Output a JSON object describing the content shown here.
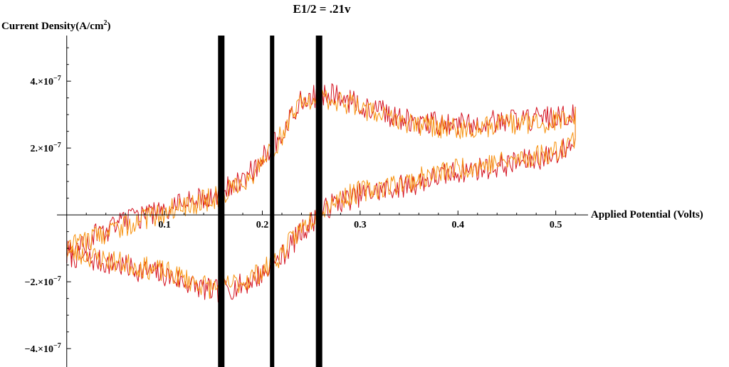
{
  "chart_data": {
    "type": "line",
    "title": "E1/2 = .21v",
    "xlabel": "Applied Potential (Volts)",
    "ylabel": {
      "text": "Current Density(A/cm",
      "sup": "2",
      "suffix": ")"
    },
    "xlim": [
      -0.01,
      0.525
    ],
    "ylim": [
      -4.55e-07,
      5.45e-07
    ],
    "x_ticks": [
      {
        "value": 0.1,
        "label": "0.1"
      },
      {
        "value": 0.2,
        "label": "0.2"
      },
      {
        "value": 0.3,
        "label": "0.3"
      },
      {
        "value": 0.4,
        "label": "0.4"
      },
      {
        "value": 0.5,
        "label": "0.5"
      }
    ],
    "y_ticks": [
      {
        "value": 4e-07,
        "mant": "4.",
        "exp": "−7"
      },
      {
        "value": 2e-07,
        "mant": "2.",
        "exp": "−7"
      },
      {
        "value": -2e-07,
        "mant": "−2.",
        "exp": "−7"
      },
      {
        "value": -4e-07,
        "mant": "−4.",
        "exp": "−7"
      }
    ],
    "tick_mult": "×10",
    "vertical_lines": [
      {
        "x": 0.158,
        "width": "thick"
      },
      {
        "x": 0.21,
        "width": "thin"
      },
      {
        "x": 0.258,
        "width": "thick"
      }
    ],
    "series": [
      {
        "color": "#d4111f",
        "forward": [
          [
            0.0,
            -1.2e-07
          ],
          [
            0.05,
            -1.5e-07
          ],
          [
            0.1,
            -1.8e-07
          ],
          [
            0.15,
            -2.3e-07
          ],
          [
            0.18,
            -2.1e-07
          ],
          [
            0.21,
            -1.6e-07
          ],
          [
            0.24,
            -5e-08
          ],
          [
            0.27,
            3e-08
          ],
          [
            0.3,
            6e-08
          ],
          [
            0.35,
            9e-08
          ],
          [
            0.4,
            1.3e-07
          ],
          [
            0.45,
            1.5e-07
          ],
          [
            0.5,
            1.8e-07
          ],
          [
            0.52,
            2.2e-07
          ]
        ],
        "reverse": [
          [
            0.52,
            3.1e-07
          ],
          [
            0.5,
            2.9e-07
          ],
          [
            0.45,
            2.8e-07
          ],
          [
            0.4,
            2.7e-07
          ],
          [
            0.35,
            2.8e-07
          ],
          [
            0.3,
            3.3e-07
          ],
          [
            0.27,
            3.6e-07
          ],
          [
            0.24,
            3.5e-07
          ],
          [
            0.21,
            2e-07
          ],
          [
            0.18,
            1e-07
          ],
          [
            0.15,
            6e-08
          ],
          [
            0.1,
            2e-08
          ],
          [
            0.05,
            -3e-08
          ],
          [
            0.0,
            -1.1e-07
          ]
        ],
        "noise": 3.6e-08,
        "seed": 7
      },
      {
        "color": "#f7920e",
        "forward": [
          [
            0.0,
            -1.1e-07
          ],
          [
            0.05,
            -1.4e-07
          ],
          [
            0.1,
            -1.7e-07
          ],
          [
            0.15,
            -2.2e-07
          ],
          [
            0.18,
            -2e-07
          ],
          [
            0.21,
            -1.5e-07
          ],
          [
            0.24,
            -4e-08
          ],
          [
            0.27,
            4e-08
          ],
          [
            0.3,
            7e-08
          ],
          [
            0.35,
            1e-07
          ],
          [
            0.4,
            1.4e-07
          ],
          [
            0.45,
            1.6e-07
          ],
          [
            0.5,
            1.9e-07
          ],
          [
            0.52,
            2.3e-07
          ]
        ],
        "reverse": [
          [
            0.52,
            3e-07
          ],
          [
            0.5,
            2.8e-07
          ],
          [
            0.45,
            2.7e-07
          ],
          [
            0.4,
            2.6e-07
          ],
          [
            0.35,
            2.7e-07
          ],
          [
            0.3,
            3.2e-07
          ],
          [
            0.27,
            3.5e-07
          ],
          [
            0.24,
            3.4e-07
          ],
          [
            0.21,
            1.9e-07
          ],
          [
            0.18,
            9e-08
          ],
          [
            0.15,
            5e-08
          ],
          [
            0.1,
            1e-08
          ],
          [
            0.05,
            -4e-08
          ],
          [
            0.0,
            -1e-07
          ]
        ],
        "noise": 3.4e-08,
        "seed": 23
      }
    ]
  }
}
